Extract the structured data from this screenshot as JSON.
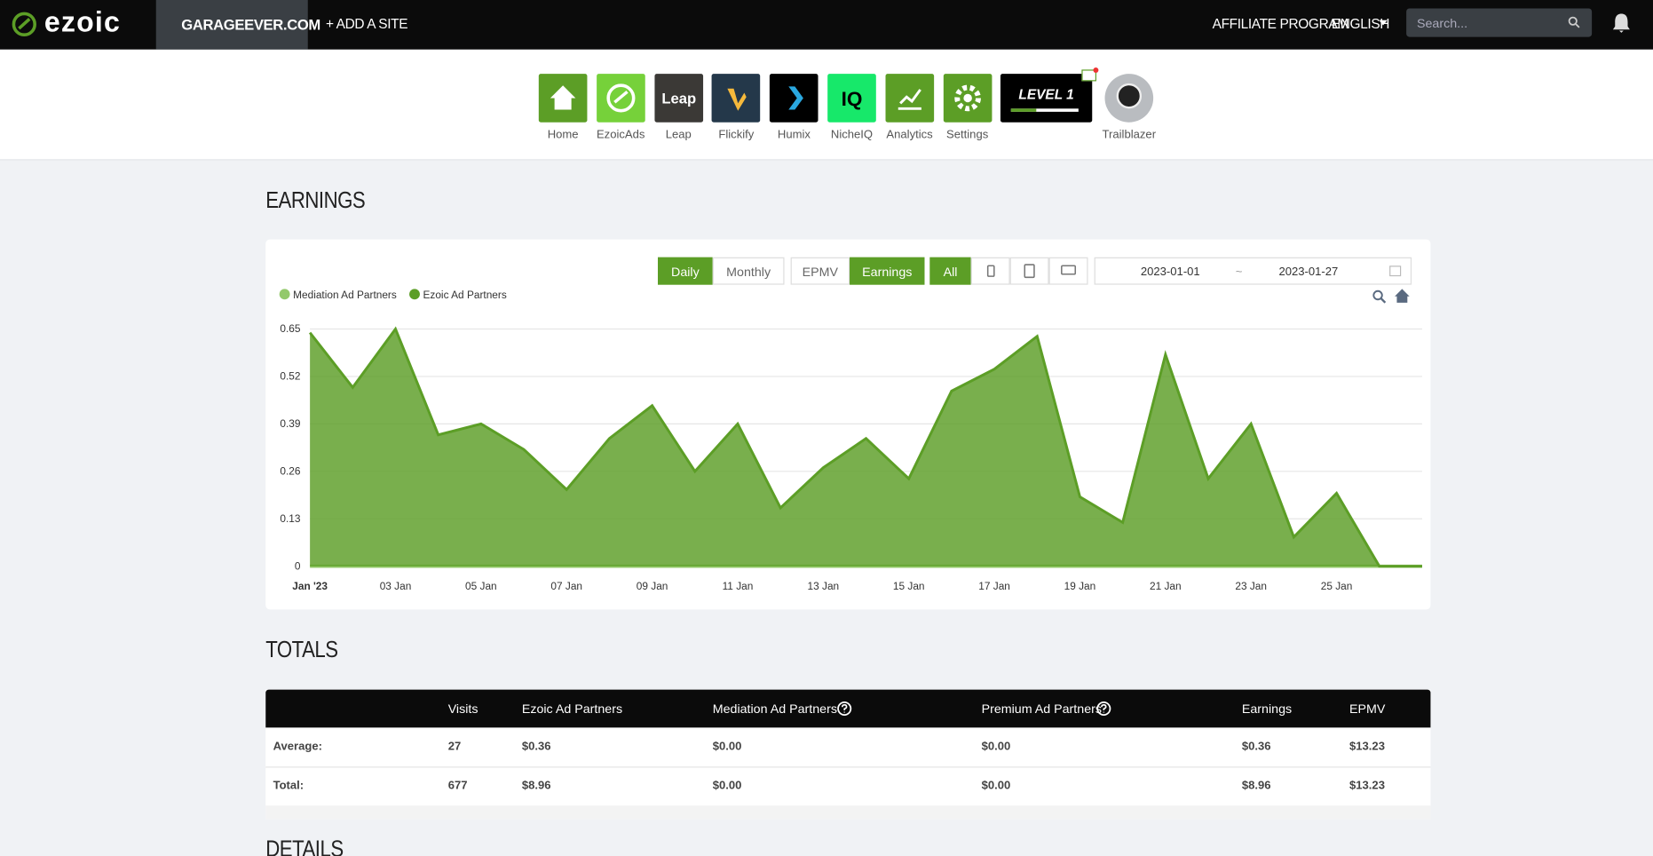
{
  "nav": {
    "logo": "ezoic",
    "site": "GARAGEEVER.COM",
    "add_site": "+ ADD A SITE",
    "affiliate": "AFFILIATE PROGRAM",
    "language": "ENGLISH",
    "search_placeholder": "Search..."
  },
  "apps": [
    {
      "label": "Home"
    },
    {
      "label": "EzoicAds"
    },
    {
      "label": "Leap",
      "icon_text": "Leap"
    },
    {
      "label": "Flickify"
    },
    {
      "label": "Humix"
    },
    {
      "label": "NicheIQ",
      "icon_text": "IQ"
    },
    {
      "label": "Analytics"
    },
    {
      "label": "Settings"
    }
  ],
  "level": "LEVEL 1",
  "profile": "Trailblazer",
  "earnings": {
    "title": "EARNINGS",
    "buttons": [
      "Daily",
      "Monthly",
      "EPMV",
      "Earnings",
      "All"
    ],
    "date_from": "2023-01-01",
    "date_sep": "~",
    "date_to": "2023-01-27"
  },
  "chart_data": {
    "type": "area",
    "categories": [
      "Jan '23",
      null,
      "03 Jan",
      null,
      "05 Jan",
      null,
      "07 Jan",
      null,
      "09 Jan",
      null,
      "11 Jan",
      null,
      "13 Jan",
      null,
      "15 Jan",
      null,
      "17 Jan",
      null,
      "19 Jan",
      null,
      "21 Jan",
      null,
      "23 Jan",
      null,
      "25 Jan",
      null,
      null
    ],
    "series": [
      {
        "name": "Mediation Ad Partners",
        "color": "#93c96b",
        "values": [
          0,
          0,
          0,
          0,
          0,
          0,
          0,
          0,
          0,
          0,
          0,
          0,
          0,
          0,
          0,
          0,
          0,
          0,
          0,
          0,
          0,
          0,
          0,
          0,
          0,
          0,
          0
        ]
      },
      {
        "name": "Ezoic Ad Partners",
        "color": "#5c9e26",
        "values": [
          0.64,
          0.49,
          0.65,
          0.36,
          0.39,
          0.32,
          0.21,
          0.35,
          0.44,
          0.26,
          0.39,
          0.16,
          0.27,
          0.35,
          0.24,
          0.48,
          0.54,
          0.63,
          0.19,
          0.12,
          0.58,
          0.24,
          0.39,
          0.08,
          0.2,
          0,
          0
        ]
      }
    ],
    "ylim": [
      0,
      0.65
    ],
    "yticks": [
      0,
      0.13,
      0.26,
      0.39,
      0.52,
      0.65
    ],
    "grid": true
  },
  "totals": {
    "title": "TOTALS",
    "columns": [
      "Visits",
      "Ezoic Ad Partners",
      "Mediation Ad Partners",
      "Premium Ad Partners",
      "Earnings",
      "EPMV"
    ],
    "rows": [
      {
        "label": "Average:",
        "cells": [
          "27",
          "$0.36",
          "$0.00",
          "$0.00",
          "$0.36",
          "$13.23"
        ]
      },
      {
        "label": "Total:",
        "cells": [
          "677",
          "$8.96",
          "$0.00",
          "$0.00",
          "$8.96",
          "$13.23"
        ]
      }
    ]
  },
  "details": "DETAILS"
}
